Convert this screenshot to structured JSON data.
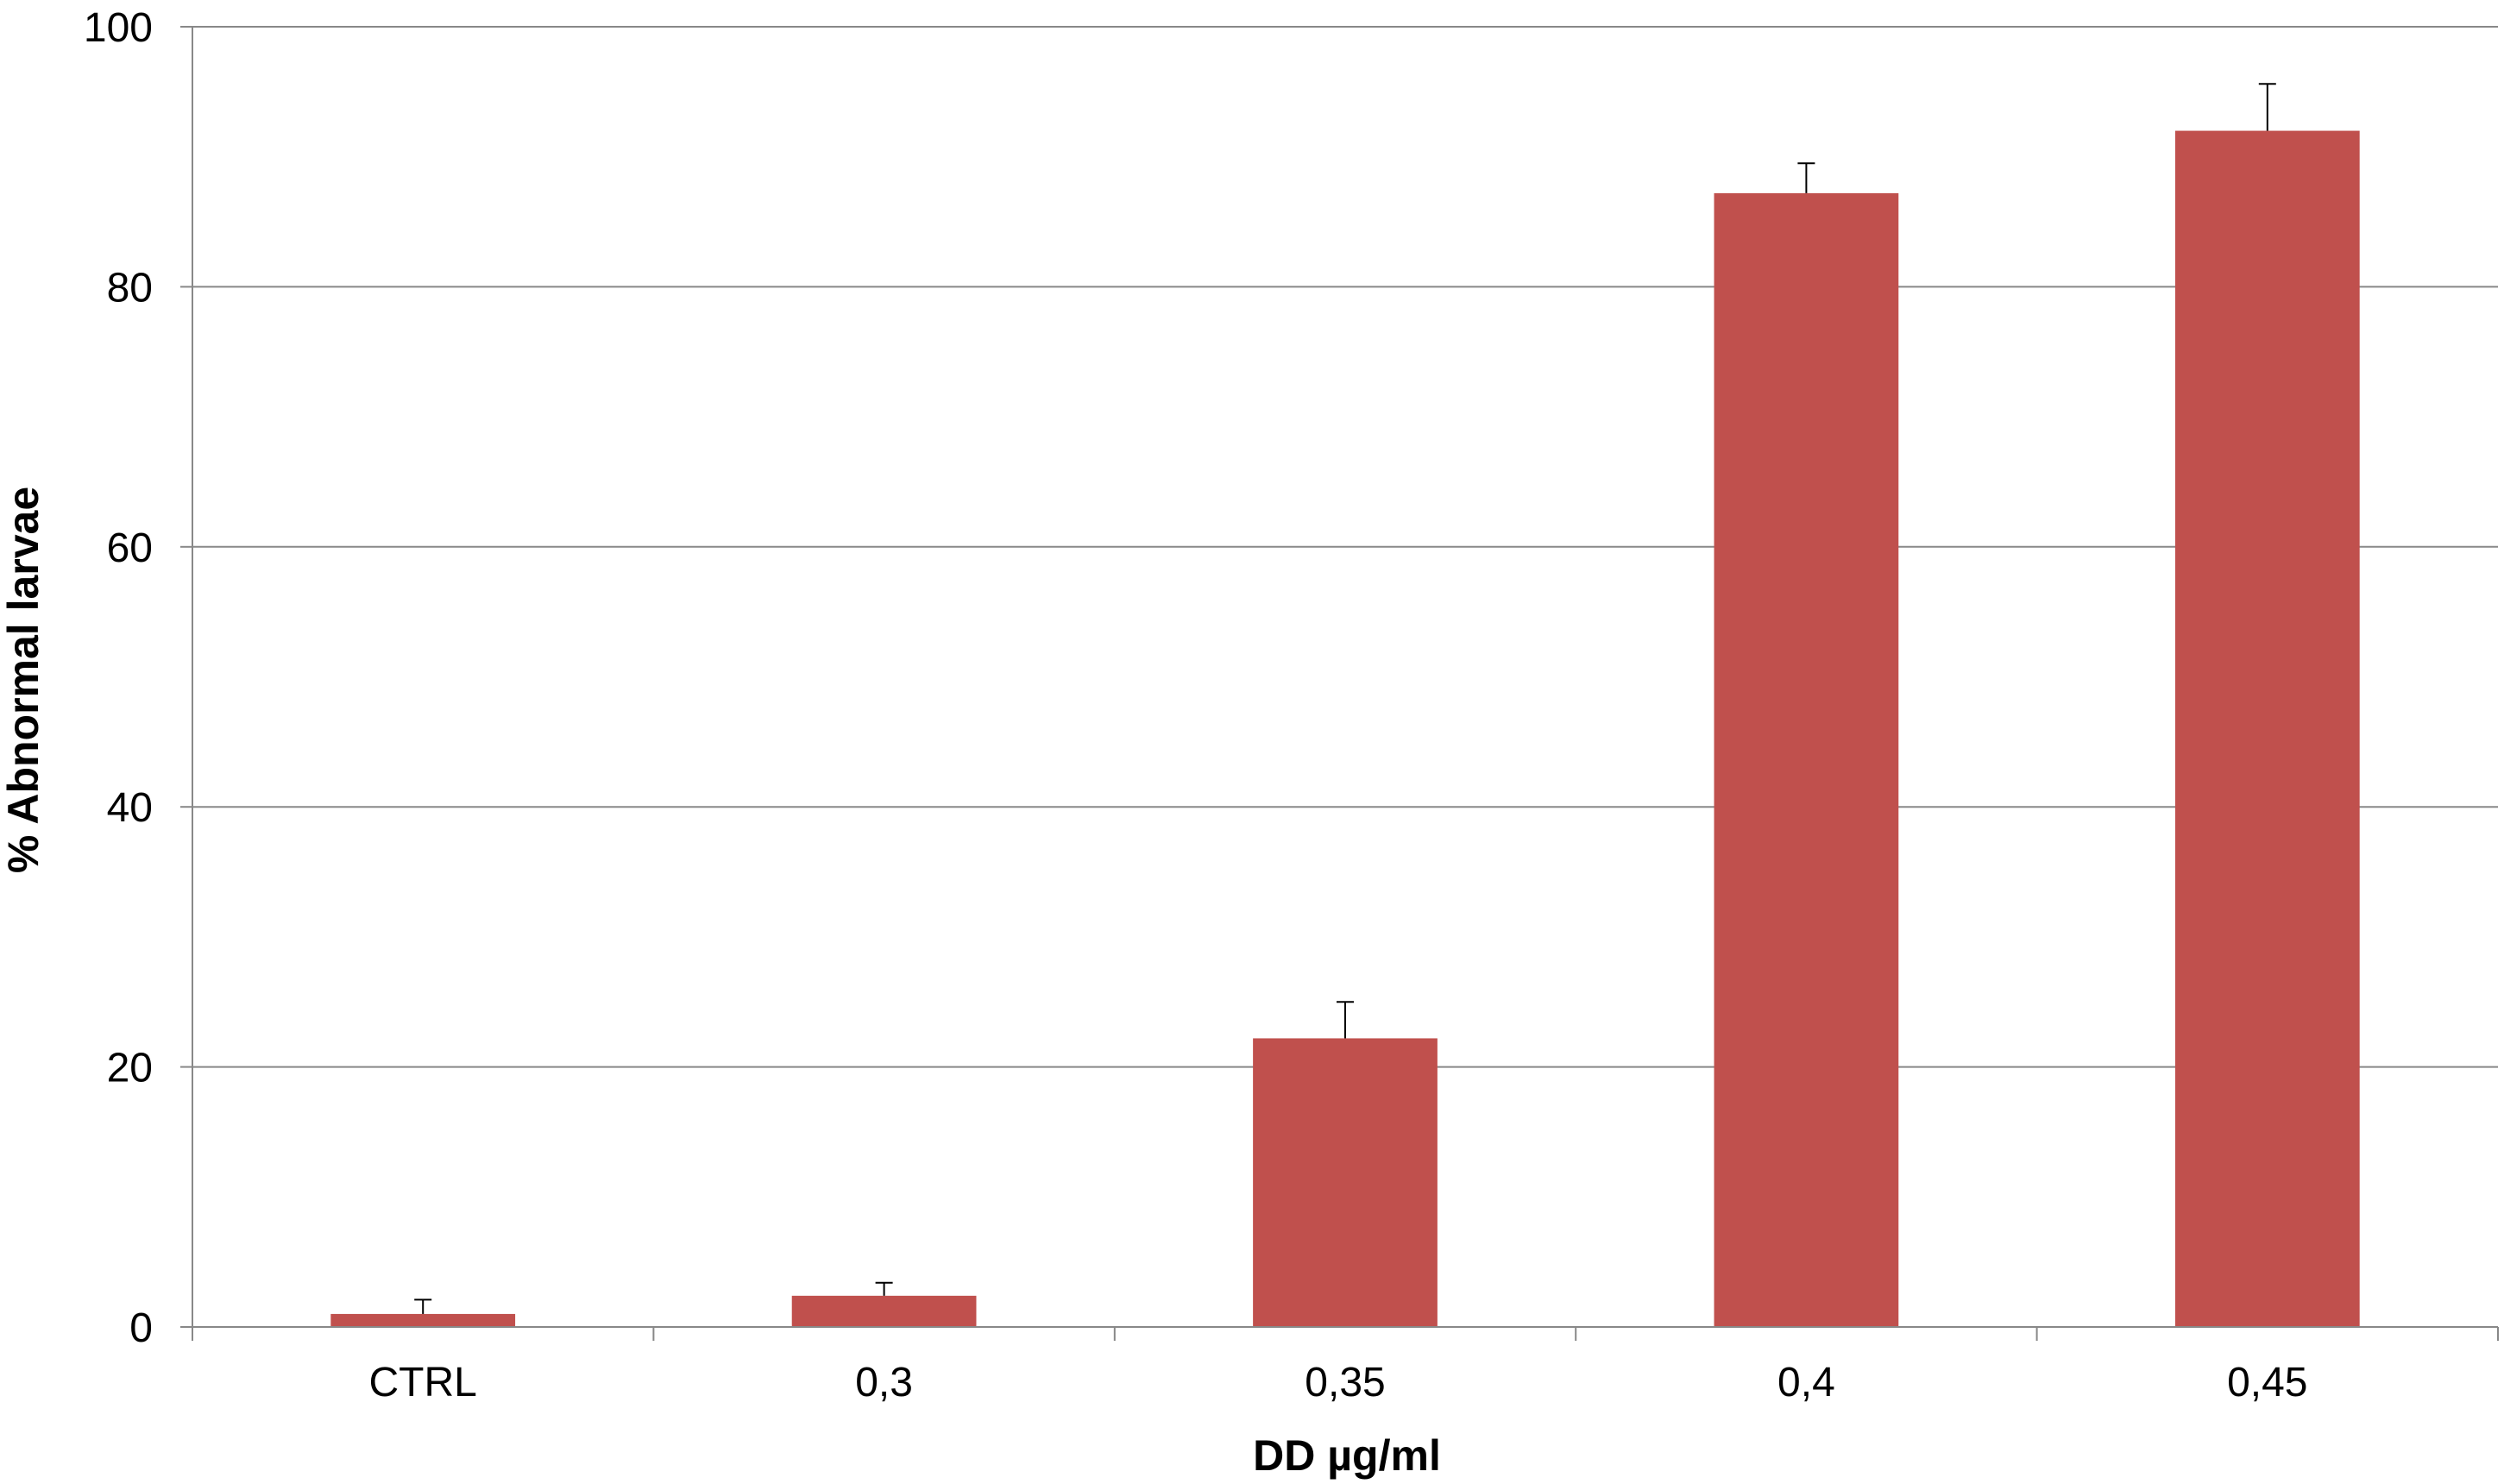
{
  "chart_data": {
    "type": "bar",
    "categories": [
      "CTRL",
      "0,3",
      "0,35",
      "0,4",
      "0,45"
    ],
    "series": [
      {
        "values": [
          1.0,
          2.4,
          22.2,
          87.2,
          92.0
        ],
        "errors": [
          1.1,
          1.0,
          2.8,
          2.3,
          3.6
        ],
        "color": "#C0504D"
      }
    ],
    "title": "",
    "xlabel": "DD µg/ml",
    "ylabel": "% Abnormal larvae",
    "ylim": [
      0,
      100
    ],
    "yticks": [
      0,
      20,
      40,
      60,
      80,
      100
    ],
    "grid": true,
    "legend": "none"
  }
}
